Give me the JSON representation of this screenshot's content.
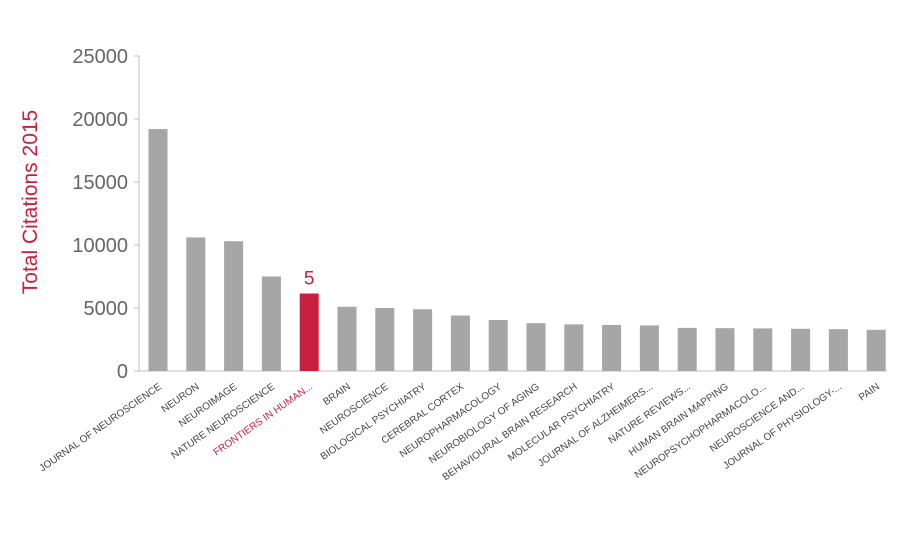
{
  "chart_data": {
    "type": "bar",
    "ylabel": "Total Citations 2015",
    "ylim": [
      0,
      25000
    ],
    "yticks": [
      "0",
      "5000",
      "10000",
      "15000",
      "20000",
      "25000"
    ],
    "grid": false,
    "categories": [
      "JOURNAL OF NEUROSCIENCE",
      "NEURON",
      "NEUROIMAGE",
      "NATURE NEUROSCIENCE",
      "FRONTIERS IN HUMAN...",
      "BRAIN",
      "NEUROSCIENCE",
      "BIOLOGICAL PSYCHIATRY",
      "CEREBRAL CORTEX",
      "NEUROPHARMACOLOGY",
      "NEUROBIOLOGY OF AGING",
      "BEHAVIOURAL BRAIN RESEARCH",
      "MOLECULAR PSYCHIATRY",
      "JOURNAL OF ALZHEIMERS...",
      "NATURE REVIEWS...",
      "HUMAN BRAIN MAPPING",
      "NEUROPSYCHOPHARMACOLO...",
      "NEUROSCIENCE AND...",
      "JOURNAL OF PHYSIOLOGY-...",
      "PAIN"
    ],
    "values": [
      19200,
      10600,
      10300,
      7500,
      6150,
      5100,
      5000,
      4900,
      4400,
      4050,
      3800,
      3700,
      3650,
      3620,
      3420,
      3400,
      3380,
      3350,
      3320,
      3270
    ],
    "highlight_index": 4,
    "highlight_label": "5",
    "colors": {
      "bar": "#a6a6a6",
      "highlight": "#c8203f",
      "axis": "#bfbfbf"
    }
  }
}
